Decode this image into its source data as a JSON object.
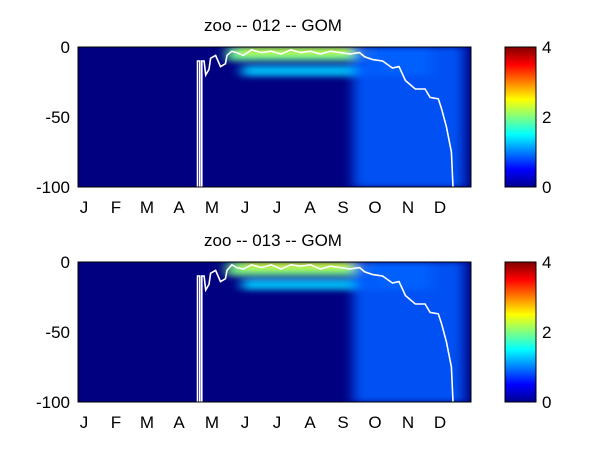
{
  "chart_data": [
    {
      "type": "heatmap",
      "title": "zoo -- 012 -- GOM",
      "xlabel": "",
      "ylabel": "",
      "x_tick_labels": [
        "J",
        "F",
        "M",
        "A",
        "M",
        "J",
        "J",
        "A",
        "S",
        "O",
        "N",
        "D"
      ],
      "y_tick_labels": [
        "0",
        "-50",
        "-100"
      ],
      "ylim": [
        -100,
        0
      ],
      "xlim_months": [
        0,
        12
      ],
      "colorscale": "jet",
      "colorbar": {
        "range": [
          0,
          4
        ],
        "tick_labels": [
          "4",
          "2",
          "0"
        ]
      },
      "background_value": 0,
      "patches": [
        {
          "month_start": 4.55,
          "month_end": 9.2,
          "depth_top": 0,
          "depth_bottom": -10,
          "value": 1.6
        },
        {
          "month_start": 4.9,
          "month_end": 9.0,
          "depth_top": 0,
          "depth_bottom": -6,
          "value": 2.0
        },
        {
          "month_start": 5.0,
          "month_end": 8.9,
          "depth_top": -13,
          "depth_bottom": -21,
          "value": 0.9
        },
        {
          "month_start": 9.0,
          "month_end": 10.8,
          "depth_top": 0,
          "depth_bottom": -20,
          "value": 0.8
        },
        {
          "month_start": 8.4,
          "month_end": 11.8,
          "depth_top": 0,
          "depth_bottom": -100,
          "value": 0.4
        }
      ],
      "contour": [
        [
          3.65,
          -100
        ],
        [
          3.65,
          -10
        ],
        [
          3.72,
          -10
        ],
        [
          3.72,
          -100
        ],
        [
          3.78,
          -100
        ],
        [
          3.78,
          -10
        ],
        [
          3.85,
          -10
        ],
        [
          3.9,
          -20
        ],
        [
          4.0,
          -16
        ],
        [
          4.05,
          -8
        ],
        [
          4.2,
          -6
        ],
        [
          4.35,
          -14
        ],
        [
          4.5,
          -12
        ],
        [
          4.55,
          -6
        ],
        [
          4.7,
          -3
        ],
        [
          4.85,
          -4
        ],
        [
          5.05,
          -6
        ],
        [
          5.3,
          -2
        ],
        [
          5.6,
          -4
        ],
        [
          5.9,
          -3
        ],
        [
          6.2,
          -5
        ],
        [
          6.5,
          -2
        ],
        [
          6.8,
          -4
        ],
        [
          7.1,
          -3
        ],
        [
          7.4,
          -5
        ],
        [
          7.7,
          -3
        ],
        [
          8.0,
          -4
        ],
        [
          8.3,
          -5
        ],
        [
          8.6,
          -4
        ],
        [
          8.75,
          -7
        ],
        [
          9.0,
          -9
        ],
        [
          9.3,
          -10
        ],
        [
          9.6,
          -15
        ],
        [
          9.8,
          -14
        ],
        [
          10.0,
          -24
        ],
        [
          10.3,
          -30
        ],
        [
          10.6,
          -30
        ],
        [
          10.75,
          -36
        ],
        [
          11.0,
          -37
        ],
        [
          11.1,
          -44
        ],
        [
          11.25,
          -57
        ],
        [
          11.4,
          -75
        ],
        [
          11.45,
          -100
        ]
      ]
    },
    {
      "type": "heatmap",
      "title": "zoo -- 013 -- GOM",
      "xlabel": "",
      "ylabel": "",
      "x_tick_labels": [
        "J",
        "F",
        "M",
        "A",
        "M",
        "J",
        "J",
        "A",
        "S",
        "O",
        "N",
        "D"
      ],
      "y_tick_labels": [
        "0",
        "-50",
        "-100"
      ],
      "ylim": [
        -100,
        0
      ],
      "xlim_months": [
        0,
        12
      ],
      "colorscale": "jet",
      "colorbar": {
        "range": [
          0,
          4
        ],
        "tick_labels": [
          "4",
          "2",
          "0"
        ]
      },
      "background_value": 0,
      "patches": [
        {
          "month_start": 4.55,
          "month_end": 9.2,
          "depth_top": 0,
          "depth_bottom": -10,
          "value": 1.7
        },
        {
          "month_start": 5.0,
          "month_end": 8.9,
          "depth_top": 0,
          "depth_bottom": -5,
          "value": 2.1
        },
        {
          "month_start": 5.0,
          "month_end": 8.9,
          "depth_top": -12,
          "depth_bottom": -20,
          "value": 0.9
        },
        {
          "month_start": 9.0,
          "month_end": 10.8,
          "depth_top": 0,
          "depth_bottom": -20,
          "value": 0.8
        },
        {
          "month_start": 8.4,
          "month_end": 11.8,
          "depth_top": 0,
          "depth_bottom": -100,
          "value": 0.4
        }
      ],
      "contour": [
        [
          3.65,
          -100
        ],
        [
          3.65,
          -10
        ],
        [
          3.72,
          -10
        ],
        [
          3.72,
          -100
        ],
        [
          3.78,
          -100
        ],
        [
          3.78,
          -10
        ],
        [
          3.85,
          -10
        ],
        [
          3.9,
          -20
        ],
        [
          4.0,
          -16
        ],
        [
          4.05,
          -8
        ],
        [
          4.2,
          -6
        ],
        [
          4.35,
          -14
        ],
        [
          4.5,
          -12
        ],
        [
          4.55,
          -6
        ],
        [
          4.7,
          -2
        ],
        [
          4.85,
          -4
        ],
        [
          5.05,
          -5
        ],
        [
          5.3,
          -2
        ],
        [
          5.6,
          -4
        ],
        [
          5.9,
          -2
        ],
        [
          6.2,
          -5
        ],
        [
          6.5,
          -2
        ],
        [
          6.8,
          -3
        ],
        [
          7.1,
          -2
        ],
        [
          7.4,
          -5
        ],
        [
          7.7,
          -3
        ],
        [
          8.0,
          -4
        ],
        [
          8.3,
          -5
        ],
        [
          8.6,
          -4
        ],
        [
          8.75,
          -7
        ],
        [
          9.0,
          -9
        ],
        [
          9.3,
          -10
        ],
        [
          9.6,
          -15
        ],
        [
          9.8,
          -14
        ],
        [
          10.0,
          -24
        ],
        [
          10.3,
          -30
        ],
        [
          10.6,
          -30
        ],
        [
          10.75,
          -36
        ],
        [
          11.0,
          -37
        ],
        [
          11.1,
          -44
        ],
        [
          11.25,
          -57
        ],
        [
          11.4,
          -75
        ],
        [
          11.45,
          -100
        ]
      ]
    }
  ]
}
